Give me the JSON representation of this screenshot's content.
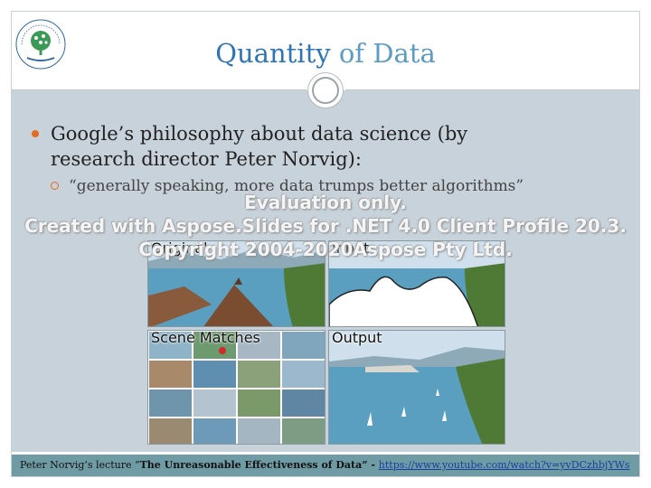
{
  "slide": {
    "title_highlight": "Quantity",
    "title_rest": " of Data",
    "bullet_main": "Google’s philosophy about data science (by research director Peter Norvig):",
    "bullet_sub": "“generally speaking, more data trumps better algorithms”"
  },
  "watermark": {
    "line1": "Evaluation only.",
    "line2": "Created with Aspose.Slides for .NET 4.0 Client Profile 20.3.",
    "line3": "Copyright 2004-2020Aspose Pty Ltd."
  },
  "figure": {
    "panel_original": "Original",
    "panel_input": "Input",
    "panel_scene": "Scene Matches",
    "panel_output": "Output"
  },
  "footer": {
    "prefix": "Peter Norvig’s lecture “",
    "lecture_title": "The Unreasonable Effectiveness of Data” - ",
    "link_text": "https://www.youtube.com/watch?v=yvDCzhbjYWs"
  },
  "logo": {
    "icon": "tree-icon",
    "text": "המרכז האקדמי רופין Ruppin Academic Center"
  },
  "colors": {
    "title": "#2e75b6",
    "content_bg": "#c7d2da",
    "footer_bg": "#6f9ba4",
    "bullet": "#e36c1f"
  }
}
